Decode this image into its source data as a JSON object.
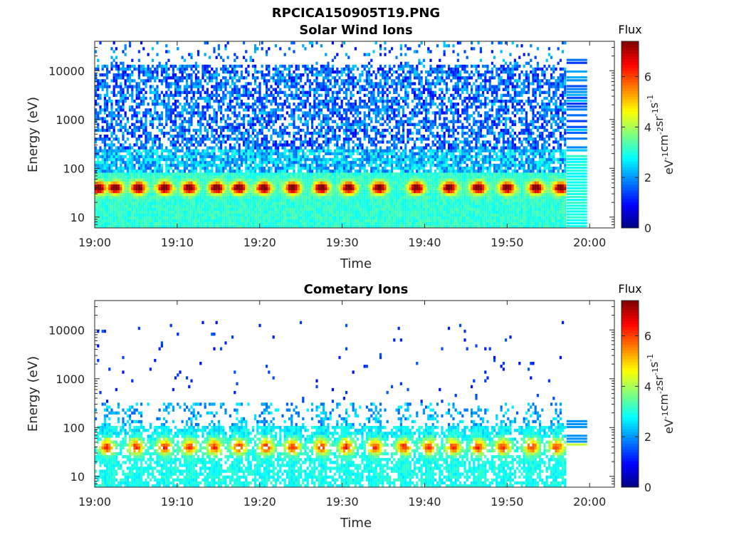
{
  "figure_title": "RPCICA150905T19.PNG",
  "colorbar": {
    "title": "Flux",
    "unit_parts": [
      "eV",
      "-1",
      "cm",
      "-2",
      "sr",
      "-1",
      "s",
      "-1"
    ],
    "ticks": [
      "0",
      "2",
      "4",
      "6"
    ],
    "colormap": "jet",
    "range": [
      0,
      7.4
    ]
  },
  "chart_data": [
    {
      "type": "heatmap",
      "title": "Solar Wind Ions",
      "xlabel": "Time",
      "ylabel": "Energy (eV)",
      "x_ticks": [
        "19:00",
        "19:10",
        "19:20",
        "19:30",
        "19:40",
        "19:50",
        "20:00"
      ],
      "x_range_minutes": [
        0,
        63
      ],
      "y_ticks": [
        "10",
        "100",
        "1000",
        "10000"
      ],
      "y_scale": "log",
      "y_range": [
        6,
        40000
      ],
      "data_end_minute": 57.2,
      "grid": false,
      "flux_peaks": [
        {
          "minute": 0.5,
          "energy": 38
        },
        {
          "minute": 2.5,
          "energy": 40
        },
        {
          "minute": 5.3,
          "energy": 42
        },
        {
          "minute": 8.5,
          "energy": 38
        },
        {
          "minute": 11.5,
          "energy": 40
        },
        {
          "minute": 14.8,
          "energy": 40
        },
        {
          "minute": 17.5,
          "energy": 38
        },
        {
          "minute": 20.5,
          "energy": 36
        },
        {
          "minute": 24.0,
          "energy": 44
        },
        {
          "minute": 27.5,
          "energy": 40
        },
        {
          "minute": 30.8,
          "energy": 40
        },
        {
          "minute": 34.5,
          "energy": 38
        },
        {
          "minute": 39.0,
          "energy": 40
        },
        {
          "minute": 43.0,
          "energy": 40
        },
        {
          "minute": 46.5,
          "energy": 42
        },
        {
          "minute": 50.0,
          "energy": 38
        },
        {
          "minute": 53.5,
          "energy": 40
        },
        {
          "minute": 56.5,
          "energy": 42
        }
      ],
      "style": "solarwind"
    },
    {
      "type": "heatmap",
      "title": "Cometary Ions",
      "xlabel": "Time",
      "ylabel": "Energy (eV)",
      "x_ticks": [
        "19:00",
        "19:10",
        "19:20",
        "19:30",
        "19:40",
        "19:50",
        "20:00"
      ],
      "x_range_minutes": [
        0,
        63
      ],
      "y_ticks": [
        "10",
        "100",
        "1000",
        "10000"
      ],
      "y_scale": "log",
      "y_range": [
        6,
        40000
      ],
      "data_end_minute": 57.2,
      "grid": false,
      "flux_peaks": [
        {
          "minute": 1.5,
          "energy": 38
        },
        {
          "minute": 5.0,
          "energy": 40
        },
        {
          "minute": 8.5,
          "energy": 36
        },
        {
          "minute": 11.5,
          "energy": 38
        },
        {
          "minute": 14.5,
          "energy": 40
        },
        {
          "minute": 17.5,
          "energy": 36
        },
        {
          "minute": 20.8,
          "energy": 20
        },
        {
          "minute": 24.0,
          "energy": 42
        },
        {
          "minute": 27.5,
          "energy": 40
        },
        {
          "minute": 30.5,
          "energy": 40
        },
        {
          "minute": 34.0,
          "energy": 40
        },
        {
          "minute": 37.5,
          "energy": 38
        },
        {
          "minute": 40.5,
          "energy": 36
        },
        {
          "minute": 43.5,
          "energy": 40
        },
        {
          "minute": 46.5,
          "energy": 40
        },
        {
          "minute": 49.5,
          "energy": 36
        },
        {
          "minute": 53.0,
          "energy": 38
        },
        {
          "minute": 56.0,
          "energy": 40
        }
      ],
      "style": "cometary"
    }
  ]
}
